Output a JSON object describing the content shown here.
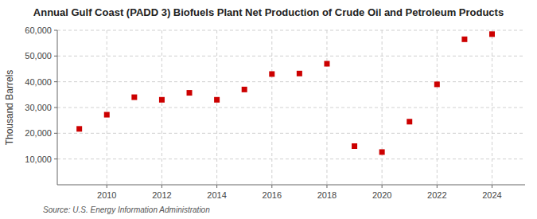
{
  "chart_data": {
    "type": "scatter",
    "title": "Annual Gulf Coast (PADD 3) Biofuels Plant Net Production of Crude Oil and Petroleum Products",
    "ylabel": "Thousand Barrels",
    "source": "Source: U.S. Energy Information Administration",
    "x": [
      2009,
      2010,
      2011,
      2012,
      2013,
      2014,
      2015,
      2016,
      2017,
      2018,
      2019,
      2020,
      2021,
      2022,
      2023,
      2024
    ],
    "values": [
      21700,
      27200,
      34000,
      33000,
      35700,
      33000,
      37000,
      43000,
      43200,
      47000,
      15000,
      12700,
      24500,
      39000,
      56500,
      58500
    ],
    "color": "#cc0000",
    "marker": "square",
    "xlim": [
      2008.2,
      2025.2
    ],
    "xticks": [
      2010,
      2012,
      2014,
      2016,
      2018,
      2020,
      2022,
      2024
    ],
    "ylim": [
      0,
      60000
    ],
    "yticks": [
      {
        "value": 10000,
        "label": "10,000"
      },
      {
        "value": 20000,
        "label": "20,000"
      },
      {
        "value": 30000,
        "label": "30,000"
      },
      {
        "value": 40000,
        "label": "40,000"
      },
      {
        "value": 50000,
        "label": "50,000"
      },
      {
        "value": 60000,
        "label": "60,000"
      }
    ],
    "grid": true
  }
}
